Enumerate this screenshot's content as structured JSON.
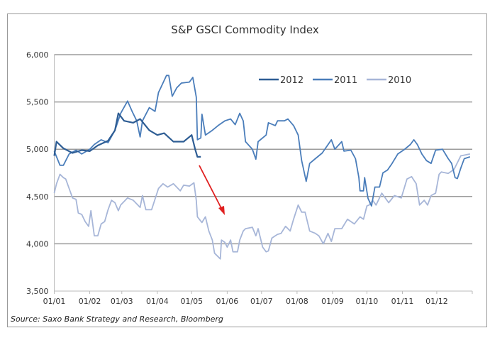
{
  "chart_data": {
    "type": "line",
    "title": "S&P GSCI Commodity Index",
    "source": "Source: Saxo Bank Strategy and Research, Bloomberg",
    "xlabel": "",
    "ylabel": "",
    "ylim": [
      3500,
      6000
    ],
    "yticks": [
      "3,500",
      "4,000",
      "4,500",
      "5,000",
      "5,500",
      "6,000"
    ],
    "ytick_values": [
      3500,
      4000,
      4500,
      5000,
      5500,
      6000
    ],
    "xticks": [
      "01/01",
      "01/02",
      "01/03",
      "01/04",
      "01/05",
      "01/06",
      "01/07",
      "01/08",
      "01/09",
      "01/10",
      "01/11",
      "01/12"
    ],
    "grid": "horizontal",
    "legend_position": "top-right",
    "annotation": {
      "type": "arrow",
      "color": "#e02020"
    },
    "series": [
      {
        "name": "2012",
        "color": "#2e5d94",
        "x": [
          "01/01",
          "03/01",
          "09/01",
          "17/01",
          "25/01",
          "01/02",
          "08/02",
          "17/02",
          "23/02",
          "26/02",
          "03/03",
          "11/03",
          "17/03",
          "25/03",
          "01/04",
          "07/04",
          "15/04",
          "24/04",
          "01/05",
          "04/05",
          "06/05",
          "09/05"
        ],
        "y": [
          4930,
          5080,
          5010,
          4960,
          4990,
          4980,
          5040,
          5090,
          5200,
          5380,
          5300,
          5280,
          5320,
          5200,
          5150,
          5170,
          5080,
          5080,
          5150,
          5000,
          4920,
          4920
        ]
      },
      {
        "name": "2011",
        "color": "#4a7dba",
        "x": [
          "01/01",
          "06/01",
          "09/01",
          "14/01",
          "20/01",
          "25/01",
          "01/02",
          "05/02",
          "11/02",
          "17/02",
          "23/02",
          "28/02",
          "06/03",
          "10/03",
          "14/03",
          "17/03",
          "19/03",
          "25/03",
          "30/03",
          "02/04",
          "04/04",
          "09/04",
          "11/04",
          "14/04",
          "18/04",
          "22/04",
          "29/04",
          "02/05",
          "05/05",
          "06/05",
          "09/05",
          "10/05",
          "13/05",
          "19/05",
          "24/05",
          "30/05",
          "04/06",
          "08/06",
          "12/06",
          "15/06",
          "17/06",
          "23/06",
          "26/06",
          "28/06",
          "05/07",
          "07/07",
          "13/07",
          "15/07",
          "21/07",
          "24/07",
          "29/07",
          "02/08",
          "05/08",
          "09/08",
          "12/08",
          "17/08",
          "23/08",
          "31/08",
          "03/09",
          "09/09",
          "11/09",
          "17/09",
          "21/09",
          "24/09",
          "25/09",
          "28/09",
          "29/09",
          "02/10",
          "05/10",
          "08/10",
          "12/10",
          "15/10",
          "19/10",
          "23/10",
          "28/10",
          "03/11",
          "08/11",
          "11/11",
          "14/11",
          "18/11",
          "22/11",
          "26/11",
          "30/11",
          "06/12",
          "11/12",
          "14/12",
          "17/12",
          "19/12",
          "22/12",
          "25/12",
          "30/12"
        ],
        "y": [
          4980,
          4830,
          4830,
          4950,
          4990,
          4950,
          5000,
          5050,
          5100,
          5070,
          5200,
          5380,
          5510,
          5400,
          5300,
          5130,
          5300,
          5440,
          5400,
          5600,
          5650,
          5780,
          5780,
          5560,
          5650,
          5700,
          5710,
          5760,
          5550,
          5100,
          5120,
          5370,
          5150,
          5200,
          5250,
          5300,
          5320,
          5260,
          5380,
          5300,
          5080,
          5000,
          4895,
          5080,
          5150,
          5280,
          5250,
          5300,
          5300,
          5320,
          5250,
          5150,
          4880,
          4660,
          4850,
          4900,
          4960,
          5100,
          5000,
          5080,
          4980,
          4990,
          4900,
          4700,
          4560,
          4560,
          4700,
          4480,
          4400,
          4600,
          4600,
          4750,
          4780,
          4850,
          4950,
          5000,
          5050,
          5100,
          5050,
          4950,
          4880,
          4850,
          4990,
          5000,
          4900,
          4850,
          4700,
          4690,
          4800,
          4900,
          4920
        ]
      },
      {
        "name": "2010",
        "color": "#a7b6d8",
        "x": [
          "01/01",
          "03/01",
          "06/01",
          "09/01",
          "11/01",
          "14/01",
          "17/01",
          "20/01",
          "22/01",
          "25/01",
          "28/01",
          "31/01",
          "02/02",
          "05/02",
          "08/02",
          "11/02",
          "14/02",
          "17/02",
          "20/02",
          "23/02",
          "26/02",
          "28/02",
          "06/03",
          "11/03",
          "17/03",
          "19/03",
          "22/03",
          "27/03",
          "02/04",
          "06/04",
          "10/04",
          "15/04",
          "21/04",
          "24/04",
          "29/04",
          "03/05",
          "05/05",
          "06/05",
          "10/05",
          "13/05",
          "16/05",
          "19/05",
          "21/05",
          "26/05",
          "27/05",
          "30/05",
          "01/06",
          "04/06",
          "06/06",
          "10/06",
          "12/06",
          "15/06",
          "17/06",
          "23/06",
          "26/06",
          "28/06",
          "02/07",
          "05/07",
          "07/07",
          "10/07",
          "13/07",
          "15/07",
          "18/07",
          "22/07",
          "26/07",
          "29/07",
          "02/08",
          "05/08",
          "08/08",
          "12/08",
          "17/08",
          "20/08",
          "24/08",
          "28/08",
          "31/08",
          "03/09",
          "09/09",
          "14/09",
          "20/09",
          "25/09",
          "28/09",
          "01/10",
          "03/10",
          "06/10",
          "09/10",
          "14/10",
          "20/10",
          "25/10",
          "31/10",
          "05/11",
          "09/11",
          "13/11",
          "16/11",
          "20/11",
          "23/11",
          "26/11",
          "30/11",
          "03/12",
          "05/12",
          "11/12",
          "16/12",
          "22/12",
          "30/12"
        ],
        "y": [
          4535,
          4635,
          4735,
          4700,
          4685,
          4585,
          4485,
          4470,
          4325,
          4310,
          4235,
          4185,
          4350,
          4085,
          4085,
          4210,
          4235,
          4360,
          4460,
          4435,
          4350,
          4410,
          4485,
          4460,
          4385,
          4510,
          4360,
          4360,
          4585,
          4635,
          4600,
          4635,
          4560,
          4620,
          4610,
          4645,
          4460,
          4285,
          4225,
          4285,
          4135,
          4040,
          3900,
          3840,
          4040,
          4015,
          3965,
          4040,
          3915,
          3915,
          4040,
          4135,
          4160,
          4175,
          4085,
          4160,
          3965,
          3915,
          3925,
          4060,
          4085,
          4100,
          4110,
          4185,
          4135,
          4260,
          4410,
          4335,
          4335,
          4135,
          4110,
          4085,
          4000,
          4110,
          4025,
          4160,
          4160,
          4260,
          4210,
          4285,
          4260,
          4400,
          4410,
          4460,
          4410,
          4535,
          4435,
          4510,
          4485,
          4685,
          4710,
          4635,
          4410,
          4460,
          4410,
          4510,
          4535,
          4735,
          4760,
          4745,
          4785,
          4930,
          4950
        ]
      }
    ]
  }
}
